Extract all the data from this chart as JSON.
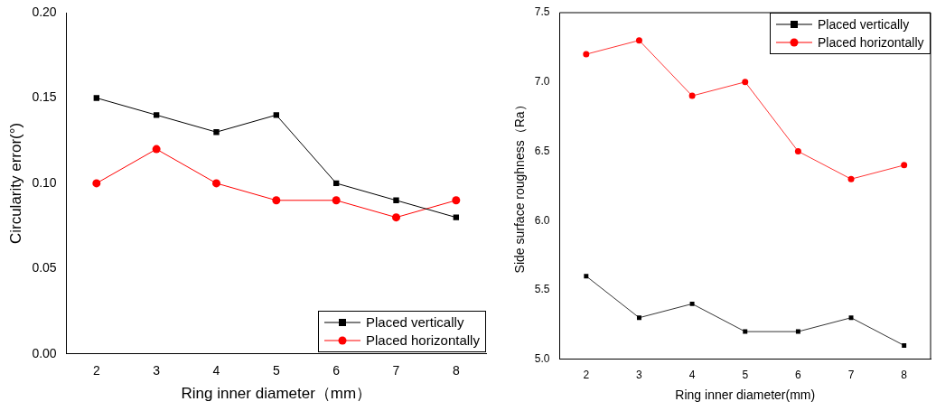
{
  "chart_data": [
    {
      "type": "line",
      "xlabel": "Ring inner diameter（mm）",
      "ylabel": "Circularity error(°)",
      "x": [
        2,
        3,
        4,
        5,
        6,
        7,
        8
      ],
      "xlim": [
        1.5,
        8.5
      ],
      "xticks": [
        2,
        3,
        4,
        5,
        6,
        7,
        8
      ],
      "ylim": [
        0,
        0.2
      ],
      "yticks": [
        {
          "value": 0,
          "label": "0.00"
        },
        {
          "value": 0.05,
          "label": "0.05"
        },
        {
          "value": 0.1,
          "label": "0.10"
        },
        {
          "value": 0.15,
          "label": "0.15"
        },
        {
          "value": 0.2,
          "label": "0.20"
        }
      ],
      "grid": false,
      "legend": "bottom right",
      "series": [
        {
          "name": "Placed vertically",
          "color": "#000000",
          "marker": "square",
          "values": [
            0.15,
            0.14,
            0.13,
            0.14,
            0.1,
            0.09,
            0.08
          ]
        },
        {
          "name": "Placed horizontally",
          "color": "#ff0000",
          "marker": "circle",
          "values": [
            0.1,
            0.12,
            0.1,
            0.09,
            0.09,
            0.08,
            0.09
          ]
        }
      ]
    },
    {
      "type": "line",
      "xlabel": "Ring inner diameter(mm)",
      "ylabel": "Side surface roughness（Ra）",
      "x": [
        2,
        3,
        4,
        5,
        6,
        7,
        8
      ],
      "xlim": [
        1.5,
        8.5
      ],
      "xticks": [
        2,
        3,
        4,
        5,
        6,
        7,
        8
      ],
      "ylim": [
        5.0,
        7.5
      ],
      "yticks": [
        {
          "value": 5.0,
          "label": "5.0"
        },
        {
          "value": 5.5,
          "label": "5.5"
        },
        {
          "value": 6.0,
          "label": "6.0"
        },
        {
          "value": 6.5,
          "label": "6.5"
        },
        {
          "value": 7.0,
          "label": "7.0"
        },
        {
          "value": 7.5,
          "label": "7.5"
        }
      ],
      "grid": false,
      "legend": "top right",
      "series": [
        {
          "name": "Placed vertically",
          "color": "#000000",
          "marker": "square",
          "values": [
            5.6,
            5.3,
            5.4,
            5.2,
            5.2,
            5.3,
            5.1
          ]
        },
        {
          "name": "Placed horizontally",
          "color": "#ff0000",
          "marker": "circle",
          "values": [
            7.2,
            7.3,
            6.9,
            7.0,
            6.5,
            6.3,
            6.4
          ]
        }
      ]
    }
  ]
}
